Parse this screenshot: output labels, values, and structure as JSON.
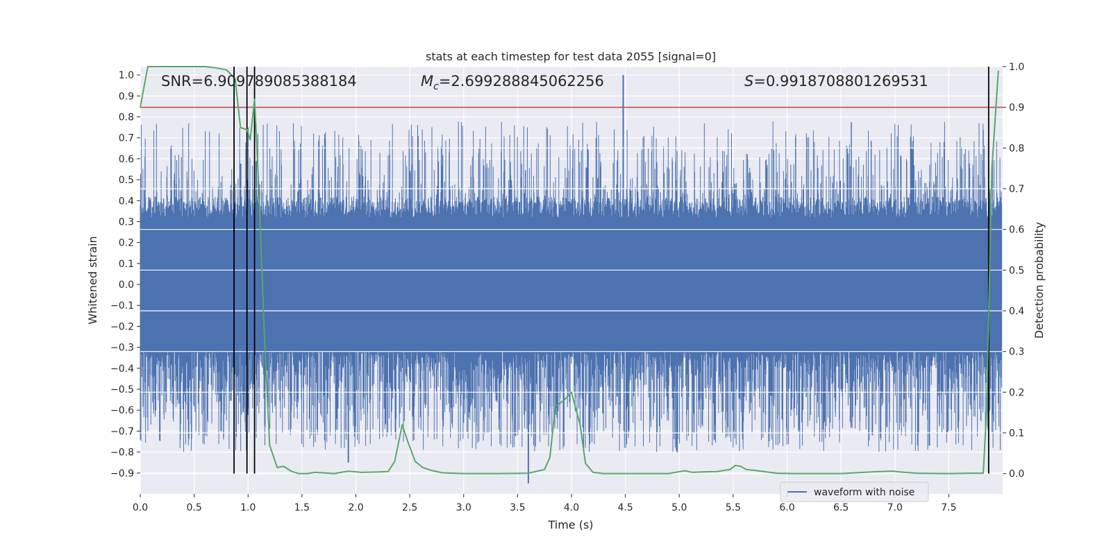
{
  "chart_data": {
    "type": "line",
    "title": "stats at each timestep for test data 2055 [signal=0]",
    "xlabel": "Time (s)",
    "ylabel_left": "Whitened strain",
    "ylabel_right": "Detection probability",
    "xlim": [
      0.0,
      8.0
    ],
    "ylim_left": [
      -1.0,
      1.04
    ],
    "ylim_right": [
      -0.05,
      1.0
    ],
    "x_ticks": [
      "0.0",
      "0.5",
      "1.0",
      "1.5",
      "2.0",
      "2.5",
      "3.0",
      "3.5",
      "4.0",
      "4.5",
      "5.0",
      "5.5",
      "6.0",
      "6.5",
      "7.0",
      "7.5"
    ],
    "y_left_ticks": [
      "1.0",
      "0.9",
      "0.8",
      "0.7",
      "0.6",
      "0.5",
      "0.4",
      "0.3",
      "0.2",
      "0.1",
      "0.0",
      "−0.1",
      "−0.2",
      "−0.3",
      "−0.4",
      "−0.5",
      "−0.6",
      "−0.7",
      "−0.8",
      "−0.9"
    ],
    "y_right_ticks": [
      "1.0",
      "0.9",
      "0.8",
      "0.7",
      "0.6",
      "0.5",
      "0.4",
      "0.3",
      "0.2",
      "0.1",
      "0.0"
    ],
    "annotations": {
      "snr": {
        "prefix": "SNR",
        "value": "=6.909789085388184"
      },
      "mc": {
        "symbol": "M",
        "subscript": "c",
        "value": "=2.699288845062256"
      },
      "s": {
        "symbol": "S",
        "value": "=0.9918708801269531"
      }
    },
    "legend": {
      "label": "waveform with noise",
      "location": "lower-right"
    },
    "threshold": {
      "value": 0.9,
      "color": "#c44e52"
    },
    "vertical_lines": [
      0.87,
      0.99,
      1.06,
      7.87
    ],
    "noise_envelope": {
      "band_upper": 0.32,
      "band_lower": -0.32,
      "spike_max": 0.78,
      "spike_min": -0.8
    },
    "spikes": [
      {
        "x": 4.48,
        "y": 1.0
      },
      {
        "x": 3.6,
        "y": -0.95
      },
      {
        "x": 1.93,
        "y": -0.85
      },
      {
        "x": 4.98,
        "y": -0.8
      },
      {
        "x": 7.32,
        "y": -0.77
      },
      {
        "x": 0.75,
        "y": -0.7
      }
    ],
    "series": [
      {
        "name": "waveform with noise",
        "axis": "left",
        "color": "#4c72b0",
        "kind": "noise"
      },
      {
        "name": "detection probability",
        "axis": "right",
        "color": "#55a868",
        "x": [
          0.0,
          0.07,
          0.2,
          0.4,
          0.6,
          0.7,
          0.8,
          0.88,
          0.93,
          0.99,
          1.02,
          1.06,
          1.1,
          1.15,
          1.2,
          1.27,
          1.33,
          1.4,
          1.47,
          1.55,
          1.62,
          1.8,
          1.93,
          2.05,
          2.2,
          2.3,
          2.36,
          2.43,
          2.48,
          2.55,
          2.62,
          2.7,
          2.8,
          3.0,
          3.3,
          3.6,
          3.75,
          3.8,
          3.85,
          3.93,
          4.0,
          4.08,
          4.13,
          4.2,
          4.3,
          4.6,
          4.9,
          5.05,
          5.12,
          5.2,
          5.35,
          5.47,
          5.52,
          5.57,
          5.62,
          5.7,
          5.9,
          6.1,
          6.5,
          6.85,
          6.98,
          7.05,
          7.2,
          7.5,
          7.7,
          7.82,
          7.85,
          7.9,
          7.96
        ],
        "y": [
          0.9,
          1.0,
          1.0,
          1.0,
          1.0,
          0.997,
          0.992,
          0.97,
          0.85,
          0.845,
          0.82,
          0.92,
          0.7,
          0.35,
          0.07,
          0.015,
          0.018,
          0.006,
          0.0,
          0.0,
          0.003,
          0.0,
          0.006,
          0.003,
          0.004,
          0.005,
          0.03,
          0.12,
          0.08,
          0.03,
          0.015,
          0.008,
          0.002,
          0.0,
          0.0,
          0.001,
          0.01,
          0.04,
          0.165,
          0.18,
          0.2,
          0.12,
          0.025,
          0.003,
          0.0,
          0.0,
          0.0,
          0.007,
          0.003,
          0.004,
          0.005,
          0.01,
          0.02,
          0.018,
          0.01,
          0.008,
          0.001,
          0.0,
          0.0,
          0.005,
          0.006,
          0.004,
          0.001,
          0.0,
          0.001,
          0.001,
          0.15,
          0.75,
          0.99
        ]
      }
    ]
  }
}
